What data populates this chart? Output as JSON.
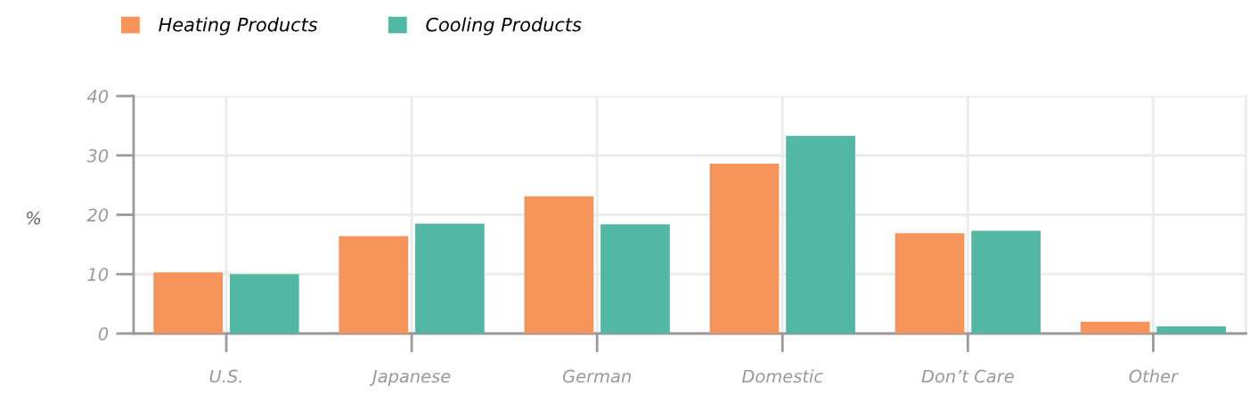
{
  "chart_data": {
    "type": "bar",
    "ylabel": "%",
    "categories": [
      "U.S.",
      "Japanese",
      "German",
      "Domestic",
      "Don’t Care",
      "Other"
    ],
    "series": [
      {
        "name": "Heating Products",
        "color": "#f59358",
        "values": [
          10.3,
          16.4,
          23.1,
          28.6,
          16.9,
          2.0
        ]
      },
      {
        "name": "Cooling Products",
        "color": "#52b8a3",
        "values": [
          10.0,
          18.5,
          18.4,
          33.3,
          17.3,
          1.2
        ]
      }
    ],
    "ylim": [
      0,
      40
    ],
    "yticks": [
      0,
      10,
      20,
      30,
      40
    ],
    "grid": true,
    "legend": "top left"
  }
}
